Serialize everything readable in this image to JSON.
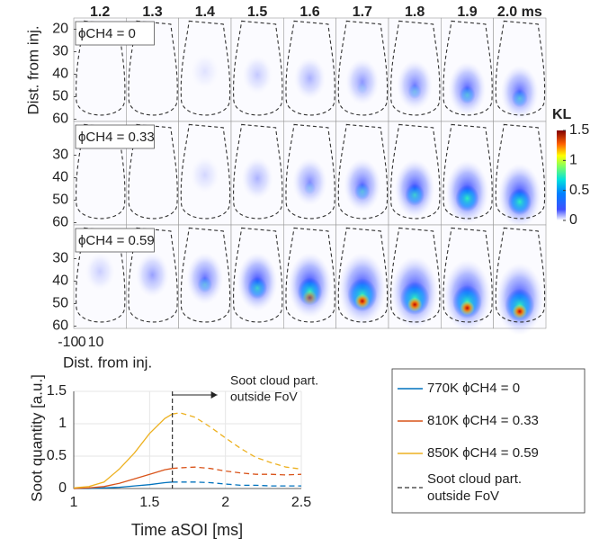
{
  "chart_data": [
    {
      "type": "image-grid",
      "columns": [
        "1.2",
        "1.3",
        "1.4",
        "1.5",
        "1.6",
        "1.7",
        "1.8",
        "1.9",
        "2.0 ms"
      ],
      "rows": [
        "ϕCH4 = 0",
        "ϕCH4 = 0.33",
        "ϕCH4 = 0.59"
      ],
      "ylabel": "Dist. from inj.",
      "xlabel": "Dist. from inj.",
      "ylim": [
        15,
        61
      ],
      "row_yticks": [
        [
          20,
          30,
          40,
          50,
          60
        ],
        [
          30,
          40,
          50,
          60
        ],
        [
          30,
          40,
          50,
          60
        ]
      ],
      "xlim": [
        -6,
        32
      ],
      "xticks": [
        -10,
        0,
        10
      ],
      "colorbar": {
        "label": "KL",
        "lim": [
          0,
          1.5
        ],
        "ticks": [
          0,
          0.5,
          1,
          1.5
        ]
      }
    },
    {
      "type": "line",
      "xlabel": "Time aSOI [ms]",
      "ylabel": "Soot quantity [a.u.]",
      "x": [
        1.0,
        1.1,
        1.2,
        1.3,
        1.4,
        1.5,
        1.6,
        1.65,
        1.7,
        1.8,
        1.9,
        2.0,
        2.1,
        2.2,
        2.3,
        2.4,
        2.5
      ],
      "series": [
        {
          "name": "770K ϕCH4 = 0",
          "color": "#0072bd",
          "values": [
            0,
            0,
            0.01,
            0.02,
            0.04,
            0.06,
            0.09,
            0.1,
            0.1,
            0.1,
            0.09,
            0.07,
            0.05,
            0.05,
            0.04,
            0.04,
            0.04
          ]
        },
        {
          "name": "810K ϕCH4 = 0.33",
          "color": "#d95319",
          "values": [
            0,
            0.01,
            0.03,
            0.08,
            0.15,
            0.22,
            0.29,
            0.31,
            0.32,
            0.33,
            0.31,
            0.27,
            0.24,
            0.22,
            0.22,
            0.21,
            0.22
          ]
        },
        {
          "name": "850K ϕCH4 = 0.59",
          "color": "#edb120",
          "values": [
            0.01,
            0.03,
            0.1,
            0.3,
            0.55,
            0.85,
            1.08,
            1.15,
            1.17,
            1.1,
            0.95,
            0.78,
            0.62,
            0.48,
            0.4,
            0.33,
            0.3
          ]
        }
      ],
      "split_x": 1.65,
      "annotation": [
        "Soot cloud part.",
        "outside FoV"
      ],
      "dashed_legend": [
        "Soot cloud part.",
        "outside FoV"
      ],
      "xlim": [
        1,
        2.5
      ],
      "ylim": [
        0,
        1.5
      ],
      "xticks": [
        1,
        1.5,
        2,
        2.5
      ],
      "yticks": [
        0,
        0.5,
        1,
        1.5
      ],
      "grid": true
    }
  ]
}
